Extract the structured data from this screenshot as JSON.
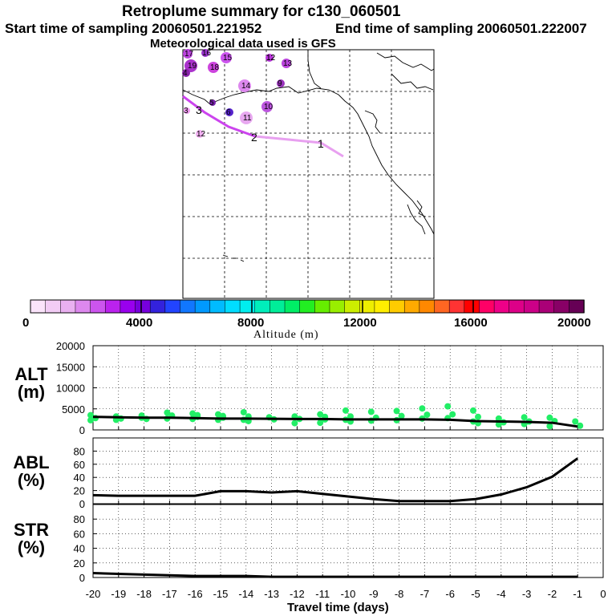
{
  "header": {
    "title": "Retroplume summary for c130_060501",
    "start": "Start time of sampling 20060501.221952",
    "end": "End time of sampling 20060501.222007",
    "met": "Meteorological data used is GFS"
  },
  "colors": {
    "trajectory_light": "#e8a0f0",
    "trajectory_dark": "#cc44ee",
    "alt_points": "#22ee66",
    "line": "#000000"
  },
  "map": {
    "trajectory_labels": [
      "1",
      "2",
      "3"
    ],
    "plume_points": [
      {
        "label": "17",
        "color": "#bb44dd"
      },
      {
        "label": "16",
        "color": "#9933cc"
      },
      {
        "label": "15",
        "color": "#cc55ee"
      },
      {
        "label": "18",
        "color": "#cc44dd"
      },
      {
        "label": "19",
        "color": "#aa33cc"
      },
      {
        "label": "4",
        "color": "#8822aa"
      },
      {
        "label": "12",
        "color": "#bb33dd"
      },
      {
        "label": "12",
        "color": "#dd77ee"
      },
      {
        "label": "13",
        "color": "#bb44dd"
      },
      {
        "label": "14",
        "color": "#dd88ee"
      },
      {
        "label": "9",
        "color": "#9933bb"
      },
      {
        "label": "10",
        "color": "#bb55dd"
      },
      {
        "label": "11",
        "color": "#e8a8f0"
      },
      {
        "label": "3",
        "color": "#ee99ee"
      },
      {
        "label": "5",
        "color": "#7722aa"
      },
      {
        "label": "6",
        "color": "#5522cc"
      },
      {
        "label": "12",
        "color": "#f2b0f2"
      }
    ]
  },
  "colorbar": {
    "title": "Altitude (m)",
    "tick_labels": [
      "0",
      "4000",
      "8000",
      "12000",
      "16000",
      "20000"
    ],
    "colors": [
      "#fbe4fb",
      "#f2ccf5",
      "#e9b0f0",
      "#dd88ee",
      "#cc55ee",
      "#bb22ee",
      "#9900ee",
      "#7700dd",
      "#3322dd",
      "#2244ff",
      "#1177ff",
      "#0099ff",
      "#00bbff",
      "#00ddff",
      "#00eeee",
      "#00eebb",
      "#00ee99",
      "#00ee66",
      "#22ee22",
      "#66ee00",
      "#99ee00",
      "#ccee00",
      "#eeee00",
      "#ffee00",
      "#ffcc00",
      "#ffaa00",
      "#ff8800",
      "#ff6622",
      "#ff3333",
      "#ff0000",
      "#ff0066",
      "#ee0088",
      "#dd0088",
      "#cc0088",
      "#aa0077",
      "#880066",
      "#660055"
    ]
  },
  "chart_data": [
    {
      "type": "scatter",
      "panel": "ALT",
      "ylabel": "ALT\n(m)",
      "ylabel_line1": "ALT",
      "ylabel_line2": "(m)",
      "ylim": [
        0,
        20000
      ],
      "yticks": [
        "0",
        "5000",
        "10000",
        "15000",
        "20000"
      ],
      "x": [
        -20,
        -19,
        -18,
        -17,
        -16,
        -15,
        -14,
        -13,
        -12,
        -11,
        -10,
        -9,
        -8,
        -7,
        -6,
        -5,
        -4,
        -3,
        -2,
        -1
      ],
      "median_line": [
        3100,
        3000,
        2900,
        2900,
        2800,
        2700,
        2700,
        2650,
        2600,
        2600,
        2500,
        2500,
        2500,
        2500,
        2400,
        2100,
        2000,
        1900,
        1700,
        800
      ],
      "scatter_groups": [
        [
          3500,
          2800,
          2300
        ],
        [
          3200,
          2700,
          2400
        ],
        [
          3400,
          2600,
          2900
        ],
        [
          4100,
          3400,
          2700
        ],
        [
          3900,
          3100,
          2600,
          3500
        ],
        [
          3700,
          2900,
          2400,
          3300
        ],
        [
          4200,
          3200,
          2400,
          2100
        ],
        [
          3000,
          2500
        ],
        [
          3200,
          2600,
          1600
        ],
        [
          3700,
          2500,
          1700,
          3100
        ],
        [
          4600,
          3200,
          2400,
          2000
        ],
        [
          4300,
          2900,
          2200
        ],
        [
          4500,
          3300,
          2300
        ],
        [
          5100,
          3600,
          2700
        ],
        [
          5600,
          3700,
          2800
        ],
        [
          4600,
          3100,
          2000,
          1600
        ],
        [
          2700,
          1800,
          1300
        ],
        [
          3000,
          2000,
          1400
        ],
        [
          2900,
          2100,
          900
        ],
        [
          2000,
          1000
        ]
      ]
    },
    {
      "type": "line",
      "panel": "ABL",
      "ylabel": "ABL\n(%)",
      "ylabel_line1": "ABL",
      "ylabel_line2": "(%)",
      "ylim": [
        0,
        100
      ],
      "yticks": [
        "0",
        "20",
        "40",
        "60",
        "80"
      ],
      "x": [
        -20,
        -19,
        -18,
        -17,
        -16,
        -15,
        -14,
        -13,
        -12,
        -11,
        -10,
        -9,
        -8,
        -7,
        -6,
        -5,
        -4,
        -3,
        -2,
        -1
      ],
      "values": [
        13,
        12,
        12,
        12,
        12,
        19,
        19,
        17,
        19,
        15,
        11,
        7,
        4,
        4,
        4,
        7,
        14,
        25,
        41,
        69
      ]
    },
    {
      "type": "line",
      "panel": "STR",
      "ylabel": "STR\n(%)",
      "ylabel_line1": "STR",
      "ylabel_line2": "(%)",
      "ylim": [
        0,
        100
      ],
      "yticks": [
        "0",
        "20",
        "40",
        "60",
        "80"
      ],
      "x": [
        -20,
        -19,
        -18,
        -17,
        -16,
        -15,
        -14,
        -13,
        -12,
        -11,
        -10,
        -9,
        -8,
        -7,
        -6,
        -5,
        -4,
        -3,
        -2,
        -1
      ],
      "values": [
        6,
        5,
        4,
        3,
        2,
        2,
        2,
        1,
        1,
        1,
        1,
        1,
        1,
        1,
        1,
        1,
        1,
        1,
        1,
        1
      ]
    }
  ],
  "xaxis": {
    "label": "Travel time (days)",
    "ticks": [
      "-20",
      "-19",
      "-18",
      "-17",
      "-16",
      "-15",
      "-14",
      "-13",
      "-12",
      "-11",
      "-10",
      "-9",
      "-8",
      "-7",
      "-6",
      "-5",
      "-4",
      "-3",
      "-2",
      "-1",
      "0"
    ]
  }
}
